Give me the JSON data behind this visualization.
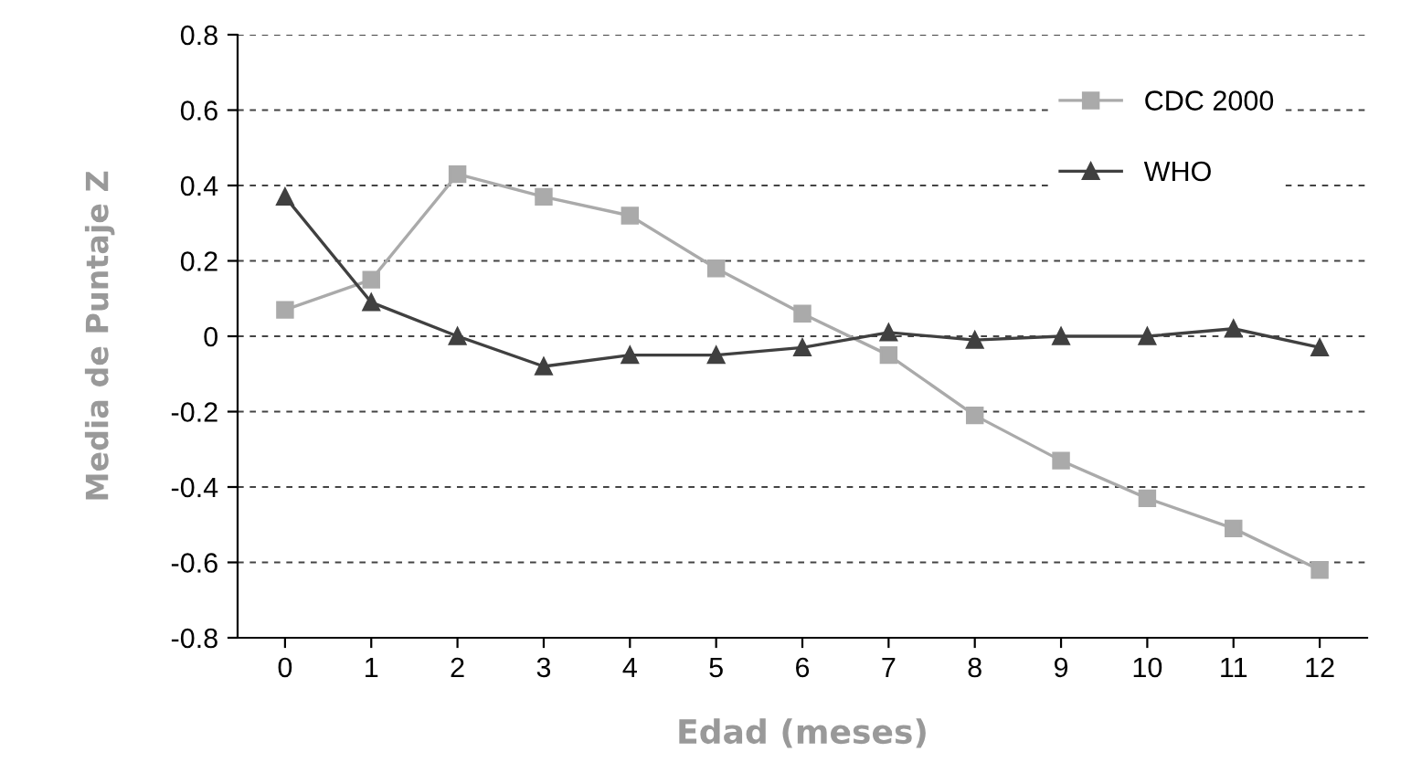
{
  "chart_data": {
    "type": "line",
    "xlabel": "Edad (meses)",
    "ylabel": "Media de Puntaje Z",
    "categories": [
      "0",
      "1",
      "2",
      "3",
      "4",
      "5",
      "6",
      "7",
      "8",
      "9",
      "10",
      "11",
      "12"
    ],
    "series": [
      {
        "name": "CDC 2000",
        "color": "#aaaaaa",
        "marker": "square",
        "values": [
          0.07,
          0.15,
          0.43,
          0.37,
          0.32,
          0.18,
          0.06,
          -0.05,
          -0.21,
          -0.33,
          -0.43,
          -0.51,
          -0.62
        ]
      },
      {
        "name": "WHO",
        "color": "#404040",
        "marker": "triangle",
        "values": [
          0.37,
          0.09,
          0,
          -0.08,
          -0.05,
          -0.05,
          -0.03,
          0.01,
          -0.01,
          0,
          0,
          0.02,
          -0.03
        ]
      }
    ],
    "ylim": [
      -0.8,
      0.8
    ],
    "yticks": [
      -0.8,
      -0.6,
      -0.4,
      -0.2,
      0,
      0.2,
      0.4,
      0.6,
      0.8
    ],
    "grid": "y",
    "legend": "top right"
  }
}
